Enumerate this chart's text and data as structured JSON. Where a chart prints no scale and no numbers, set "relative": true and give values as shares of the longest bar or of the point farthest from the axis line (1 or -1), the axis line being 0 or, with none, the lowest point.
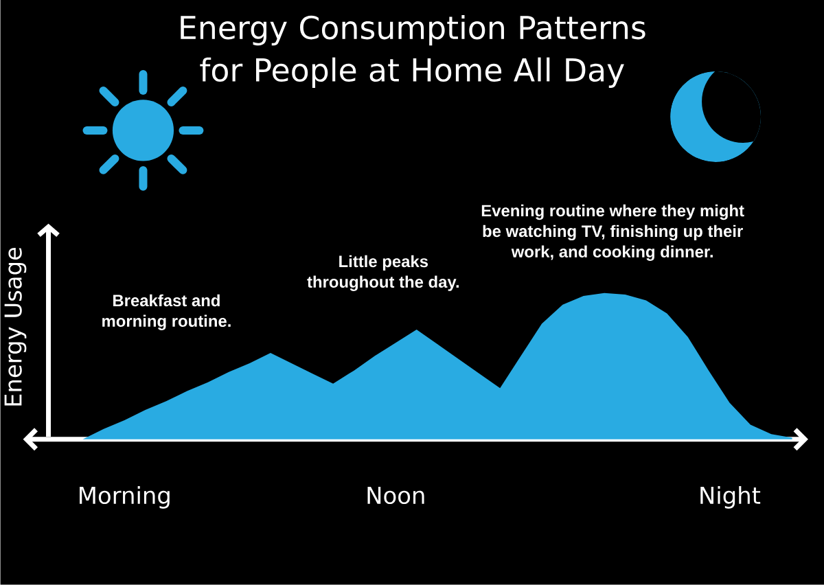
{
  "chart_data": {
    "type": "area",
    "title": "Energy Consumption Patterns for People at Home All Day",
    "ylabel": "Energy Usage",
    "relative": true,
    "color": "#29abe2",
    "categories": [
      null,
      null,
      "Morning",
      null,
      null,
      null,
      null,
      null,
      null,
      null,
      null,
      null,
      null,
      null,
      null,
      "Noon",
      null,
      null,
      null,
      null,
      null,
      null,
      null,
      null,
      null,
      null,
      null,
      null,
      null,
      null,
      null,
      "Night",
      null,
      null,
      null
    ],
    "values": [
      0,
      0.07,
      0.13,
      0.2,
      0.26,
      0.33,
      0.39,
      0.46,
      0.52,
      0.59,
      0.52,
      0.45,
      0.38,
      0.47,
      0.57,
      0.66,
      0.75,
      0.65,
      0.55,
      0.45,
      0.35,
      0.57,
      0.79,
      0.92,
      0.98,
      1,
      0.99,
      0.95,
      0.86,
      0.7,
      0.47,
      0.25,
      0.1,
      0.035,
      0.01
    ],
    "annotations": [
      "Breakfast and morning routine.",
      "Little peaks throughout the day.",
      "Evening routine where they might be watching TV, finishing up their work, and cooking dinner."
    ]
  }
}
